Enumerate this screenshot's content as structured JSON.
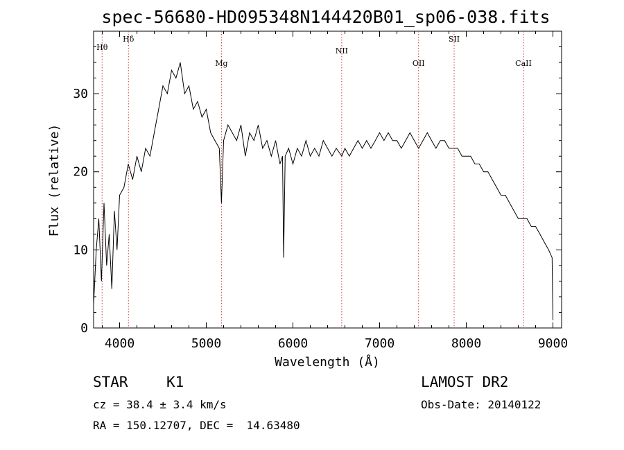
{
  "title": "spec-56680-HD095348N144420B01_sp06-038.fits",
  "info": {
    "class_label": "STAR",
    "subclass": "K1",
    "survey": "LAMOST DR2",
    "cz": "cz = 38.4 ± 3.4 km/s",
    "obs_date": "Obs-Date: 20140122",
    "coords": "RA = 150.12707, DEC =  14.63480"
  },
  "chart_data": {
    "type": "line",
    "title": "spec-56680-HD095348N144420B01_sp06-038.fits",
    "xlabel": "Wavelength (Å)",
    "ylabel": "Flux (relative)",
    "xlim": [
      3700,
      9100
    ],
    "ylim": [
      0,
      38
    ],
    "xticks": [
      4000,
      5000,
      6000,
      7000,
      8000,
      9000
    ],
    "yticks": [
      0,
      10,
      20,
      30
    ],
    "grid": false,
    "line_color": "#000000",
    "marker_color": "#cc3333",
    "series": [
      {
        "x": [
          3700,
          3730,
          3760,
          3790,
          3820,
          3850,
          3880,
          3910,
          3940,
          3970,
          4000,
          4050,
          4100,
          4150,
          4200,
          4250,
          4300,
          4350,
          4400,
          4450,
          4500,
          4550,
          4600,
          4650,
          4700,
          4750,
          4800,
          4850,
          4900,
          4950,
          5000,
          5050,
          5100,
          5150,
          5175,
          5200,
          5250,
          5300,
          5350,
          5400,
          5450,
          5500,
          5550,
          5600,
          5650,
          5700,
          5750,
          5800,
          5850,
          5880,
          5893,
          5910,
          5950,
          6000,
          6050,
          6100,
          6150,
          6200,
          6250,
          6300,
          6350,
          6400,
          6450,
          6500,
          6563,
          6600,
          6650,
          6700,
          6750,
          6800,
          6850,
          6900,
          6950,
          7000,
          7050,
          7100,
          7150,
          7200,
          7250,
          7300,
          7350,
          7400,
          7450,
          7500,
          7550,
          7600,
          7650,
          7700,
          7750,
          7800,
          7850,
          7900,
          7950,
          8000,
          8050,
          8100,
          8150,
          8200,
          8250,
          8300,
          8350,
          8400,
          8450,
          8500,
          8550,
          8600,
          8650,
          8700,
          8750,
          8800,
          8850,
          8900,
          8950,
          8990,
          9000
        ],
        "y": [
          3,
          10,
          14,
          6,
          16,
          8,
          12,
          5,
          15,
          10,
          17,
          18,
          21,
          19,
          22,
          20,
          23,
          22,
          25,
          28,
          31,
          30,
          33,
          32,
          34,
          30,
          31,
          28,
          29,
          27,
          28,
          25,
          24,
          23,
          16,
          24,
          26,
          25,
          24,
          26,
          22,
          25,
          24,
          26,
          23,
          24,
          22,
          24,
          21,
          22,
          9,
          22,
          23,
          21,
          23,
          22,
          24,
          22,
          23,
          22,
          24,
          23,
          22,
          23,
          22,
          23,
          22,
          23,
          24,
          23,
          24,
          23,
          24,
          25,
          24,
          25,
          24,
          24,
          23,
          24,
          25,
          24,
          23,
          24,
          25,
          24,
          23,
          24,
          24,
          23,
          23,
          23,
          22,
          22,
          22,
          21,
          21,
          20,
          20,
          19,
          18,
          17,
          17,
          16,
          15,
          14,
          14,
          14,
          13,
          13,
          12,
          11,
          10,
          9,
          1
        ]
      }
    ],
    "lines": [
      {
        "label": "Hθ",
        "x": 3798
      },
      {
        "label": "Hδ",
        "x": 4102
      },
      {
        "label": "Mg",
        "x": 5175
      },
      {
        "label": "NII",
        "x": 6563
      },
      {
        "label": "OII",
        "x": 7450
      },
      {
        "label": "SII",
        "x": 7860
      },
      {
        "label": "CaII",
        "x": 8660
      }
    ]
  }
}
